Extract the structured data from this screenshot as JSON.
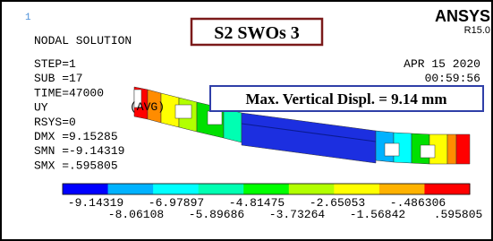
{
  "marker": "1",
  "header": {
    "title": "NODAL SOLUTION",
    "label": "S2 SWOs 3",
    "brand": "ANSYS",
    "release": "R15.0"
  },
  "info": {
    "lines": [
      "STEP=1",
      "SUB =17",
      "TIME=47000",
      "UY",
      "RSYS=0",
      "DMX =9.15285",
      "SMN =-9.14319",
      "SMX =.595805"
    ],
    "avg": "(AVG)",
    "date": "APR 15 2020",
    "time": "00:59:56"
  },
  "annotation": "Max. Vertical Displ. = 9.14 mm",
  "legend": {
    "labels": [
      "-9.14319",
      "-8.06108",
      "-6.97897",
      "-5.89686",
      "-4.81475",
      "-3.73264",
      "-2.65053",
      "-1.56842",
      "-.486306",
      ".595805"
    ]
  }
}
